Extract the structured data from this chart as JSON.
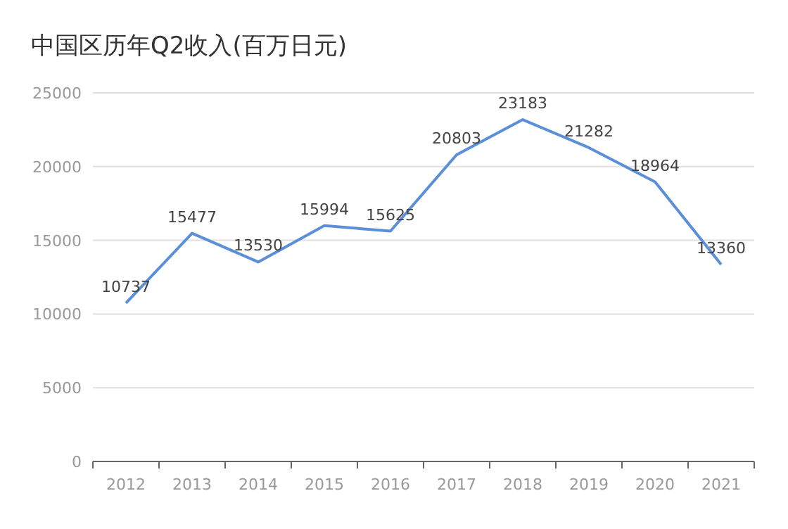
{
  "chart_data": {
    "type": "line",
    "title": "中国区历年Q2收入(百万日元)",
    "categories": [
      "2012",
      "2013",
      "2014",
      "2015",
      "2016",
      "2017",
      "2018",
      "2019",
      "2020",
      "2021"
    ],
    "values": [
      10737,
      15477,
      13530,
      15994,
      15625,
      20803,
      23183,
      21282,
      18964,
      13360
    ],
    "color": "#5b8fd9",
    "ylim": [
      0,
      25000
    ],
    "yticks": [
      0,
      5000,
      10000,
      15000,
      20000,
      25000
    ],
    "grid": "y",
    "data_labels": true
  }
}
